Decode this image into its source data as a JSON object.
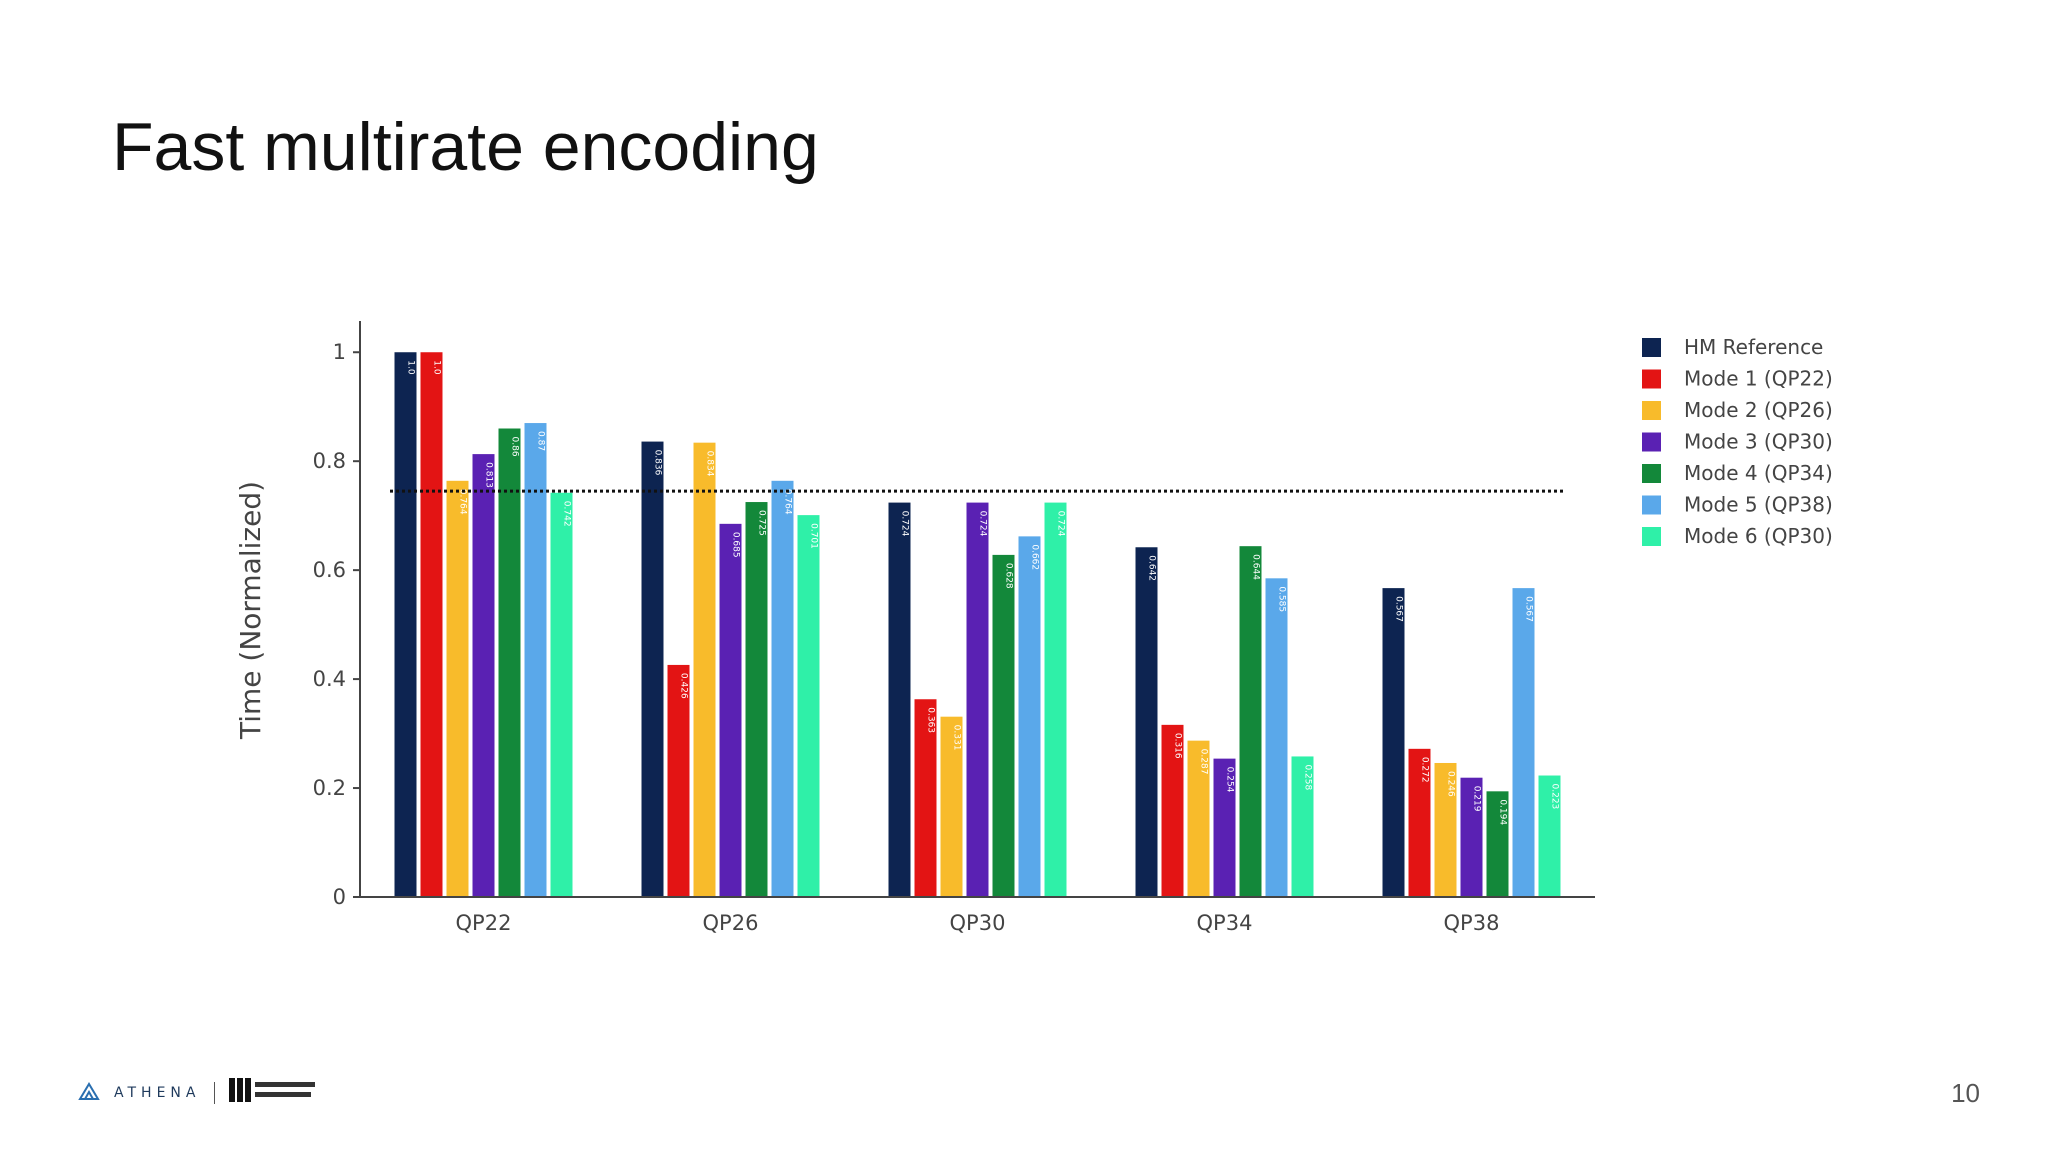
{
  "slide": {
    "title": "Fast multirate encoding",
    "page_number": "10",
    "footer": {
      "athena_logo_text": "ATHENA",
      "university_logo_icon": "klagenfurt-university-logo"
    }
  },
  "chart_data": {
    "type": "bar",
    "title": "",
    "xlabel": "",
    "ylabel": "Time (Normalized)",
    "ylim": [
      0,
      1.05
    ],
    "yticks": [
      0,
      0.2,
      0.4,
      0.6,
      0.8,
      1
    ],
    "ytick_labels": [
      "0",
      "0.2",
      "0.4",
      "0.6",
      "0.8",
      "1"
    ],
    "grid": false,
    "legend_position": "right",
    "reference_line": {
      "value": 0.745,
      "style": "dotted"
    },
    "categories": [
      "QP22",
      "QP26",
      "QP30",
      "QP34",
      "QP38"
    ],
    "series": [
      {
        "name": "HM Reference",
        "color": "#0d2451",
        "values": [
          1.0,
          0.836,
          0.724,
          0.642,
          0.567
        ],
        "labels": [
          "1.0",
          "0.836",
          "0.724",
          "0.642",
          "0.567"
        ]
      },
      {
        "name": "Mode 1 (QP22)",
        "color": "#e31414",
        "values": [
          1.0,
          0.426,
          0.363,
          0.316,
          0.272
        ],
        "labels": [
          "1.0",
          "0.426",
          "0.363",
          "0.316",
          "0.272"
        ]
      },
      {
        "name": "Mode 2 (QP26)",
        "color": "#f8bb2b",
        "values": [
          0.764,
          0.834,
          0.331,
          0.287,
          0.246
        ],
        "labels": [
          "0.764",
          "0.834",
          "0.331",
          "0.287",
          "0.246"
        ]
      },
      {
        "name": "Mode 3 (QP30)",
        "color": "#5a21b3",
        "values": [
          0.813,
          0.685,
          0.724,
          0.254,
          0.219
        ],
        "labels": [
          "0.813",
          "0.685",
          "0.724",
          "0.254",
          "0.219"
        ]
      },
      {
        "name": "Mode 4 (QP34)",
        "color": "#13883a",
        "values": [
          0.86,
          0.725,
          0.628,
          0.644,
          0.194
        ],
        "labels": [
          "0.86",
          "0.725",
          "0.628",
          "0.644",
          "0.194"
        ]
      },
      {
        "name": "Mode 5 (QP38)",
        "color": "#5aa8ea",
        "values": [
          0.87,
          0.764,
          0.662,
          0.585,
          0.567
        ],
        "labels": [
          "0.87",
          "0.764",
          "0.662",
          "0.585",
          "0.567"
        ]
      },
      {
        "name": "Mode 6 (QP30)",
        "color": "#2ff0a8",
        "values": [
          0.742,
          0.701,
          0.724,
          0.258,
          0.223
        ],
        "labels": [
          "0.742",
          "0.701",
          "0.724",
          "0.258",
          "0.223"
        ]
      }
    ]
  }
}
